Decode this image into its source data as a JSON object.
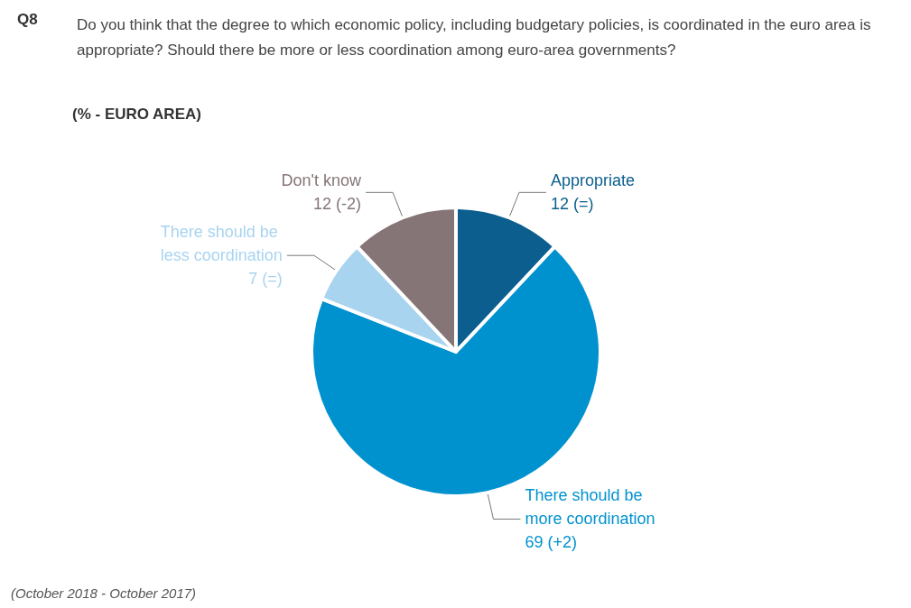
{
  "chart_data": {
    "type": "pie",
    "title": "Q8",
    "subtitle": "Do you think that the degree to which economic policy, including budgetary policies, is coordinated in the euro area is appropriate? Should there be more or less coordination among euro-area governments?",
    "categories": [
      "Appropriate",
      "There should be more coordination",
      "There should be less coordination",
      "Don't know"
    ],
    "values": [
      12,
      69,
      7,
      12
    ],
    "value_labels": [
      "12 (=)",
      "69 (+2)",
      "7 (=)",
      "12 (-2)"
    ],
    "colors": [
      "#0b5e8e",
      "#0091cf",
      "#a8d4f0",
      "#857576"
    ],
    "legend": false,
    "annotations": [
      "(% - EURO AREA)",
      "(October 2018 - October 2017)"
    ]
  }
}
